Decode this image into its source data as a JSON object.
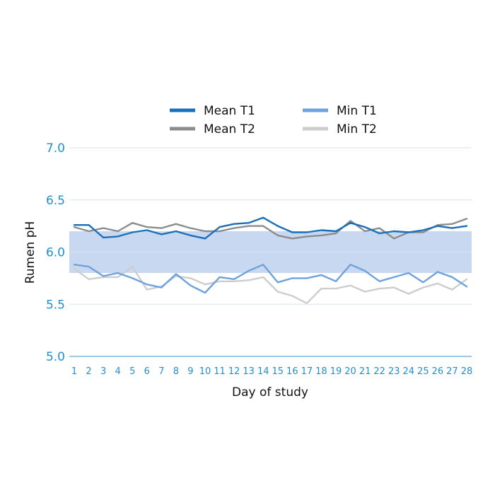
{
  "chart_data": {
    "type": "line",
    "xlabel": "Day of study",
    "ylabel": "Rumen pH",
    "ylim": [
      5.0,
      7.0
    ],
    "y_ticks": [
      "5.0",
      "5.5",
      "6.0",
      "6.5",
      "7.0"
    ],
    "x": [
      1,
      2,
      3,
      4,
      5,
      6,
      7,
      8,
      9,
      10,
      11,
      12,
      13,
      14,
      15,
      16,
      17,
      18,
      19,
      20,
      21,
      22,
      23,
      24,
      25,
      26,
      27,
      28
    ],
    "band": {
      "from": 5.8,
      "to": 6.2,
      "color": "#c9d8f1"
    },
    "gridlines": true,
    "legend_position": "top-center",
    "series": [
      {
        "name": "Mean T1",
        "color": "#1a6fba",
        "values": [
          6.26,
          6.26,
          6.14,
          6.15,
          6.19,
          6.21,
          6.17,
          6.2,
          6.16,
          6.13,
          6.24,
          6.27,
          6.28,
          6.33,
          6.25,
          6.19,
          6.19,
          6.21,
          6.2,
          6.28,
          6.24,
          6.18,
          6.2,
          6.19,
          6.21,
          6.25,
          6.23,
          6.25
        ]
      },
      {
        "name": "Mean T2",
        "color": "#8c8c8c",
        "values": [
          6.24,
          6.2,
          6.23,
          6.2,
          6.28,
          6.24,
          6.23,
          6.27,
          6.23,
          6.2,
          6.2,
          6.23,
          6.25,
          6.25,
          6.16,
          6.13,
          6.15,
          6.16,
          6.18,
          6.3,
          6.2,
          6.23,
          6.13,
          6.19,
          6.19,
          6.26,
          6.27,
          6.32
        ]
      },
      {
        "name": "Min T1",
        "color": "#6ea2dc",
        "values": [
          5.88,
          5.86,
          5.77,
          5.8,
          5.75,
          5.69,
          5.66,
          5.79,
          5.68,
          5.61,
          5.76,
          5.74,
          5.82,
          5.88,
          5.71,
          5.75,
          5.75,
          5.78,
          5.72,
          5.88,
          5.82,
          5.72,
          5.76,
          5.8,
          5.71,
          5.81,
          5.76,
          5.67
        ]
      },
      {
        "name": "Min T2",
        "color": "#cdcdcd",
        "values": [
          5.84,
          5.74,
          5.76,
          5.76,
          5.86,
          5.64,
          5.67,
          5.77,
          5.75,
          5.69,
          5.72,
          5.72,
          5.73,
          5.76,
          5.62,
          5.58,
          5.51,
          5.65,
          5.65,
          5.68,
          5.62,
          5.65,
          5.66,
          5.6,
          5.66,
          5.7,
          5.64,
          5.74
        ]
      }
    ]
  }
}
